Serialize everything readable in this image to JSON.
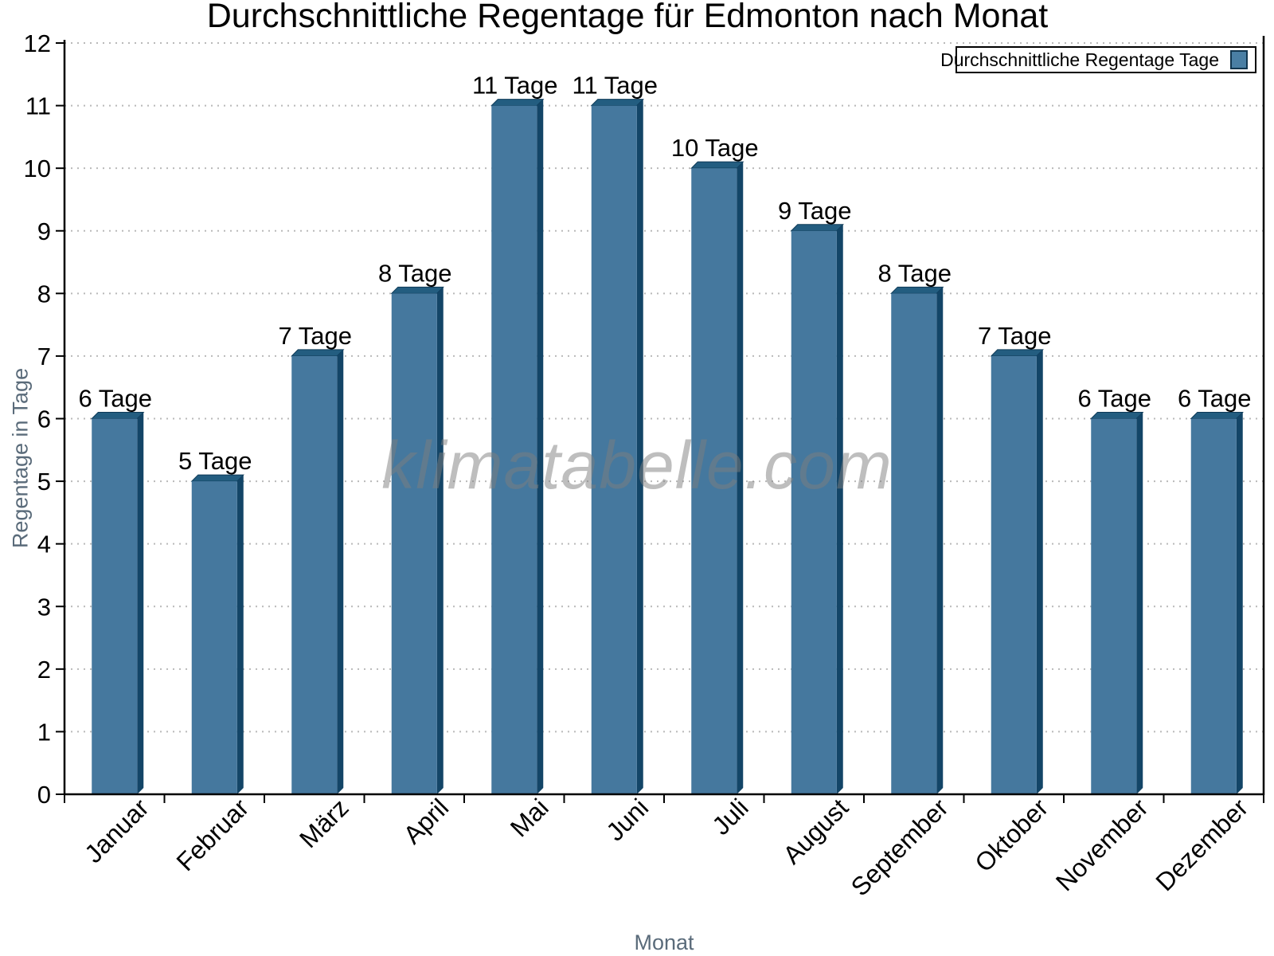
{
  "page": {
    "watermark": "klimatabelle.com"
  },
  "legend": {
    "label": "Durchschnittliche Regentage Tage"
  },
  "chart_data": {
    "type": "bar",
    "title": "Durchschnittliche Regentage für Edmonton nach Monat",
    "xlabel": "Monat",
    "ylabel": "Regentage in Tage",
    "categories": [
      "Januar",
      "Februar",
      "März",
      "April",
      "Mai",
      "Juni",
      "Juli",
      "August",
      "September",
      "Oktober",
      "November",
      "Dezember"
    ],
    "values": [
      6,
      5,
      7,
      8,
      11,
      11,
      10,
      9,
      8,
      7,
      6,
      6
    ],
    "bar_labels": [
      "6 Tage",
      "5 Tage",
      "7 Tage",
      "8 Tage",
      "11 Tage",
      "11 Tage",
      "10 Tage",
      "9 Tage",
      "8 Tage",
      "7 Tage",
      "6 Tage",
      "6 Tage"
    ],
    "ylim": [
      0,
      12
    ],
    "ytick_interval": 1,
    "ytick_labels": [
      "0",
      "1",
      "2",
      "3",
      "4",
      "5",
      "6",
      "7",
      "8",
      "9",
      "10",
      "11",
      "12"
    ],
    "grid": "horizontal-dotted",
    "legend_position": "top-right",
    "legend_label": "Durchschnittliche Regentage Tage",
    "watermark": "klimatabelle.com",
    "colors": {
      "bar_front": "#45789e",
      "bar_top": "#235d80",
      "bar_side": "#134567",
      "grid": "#b9b9b9",
      "axis": "#000000",
      "tick_label": "#000000",
      "axis_title": "#5a6b7a",
      "legend_swatch": "#4a7fa4",
      "watermark_gray": "#7d7d7d"
    }
  }
}
